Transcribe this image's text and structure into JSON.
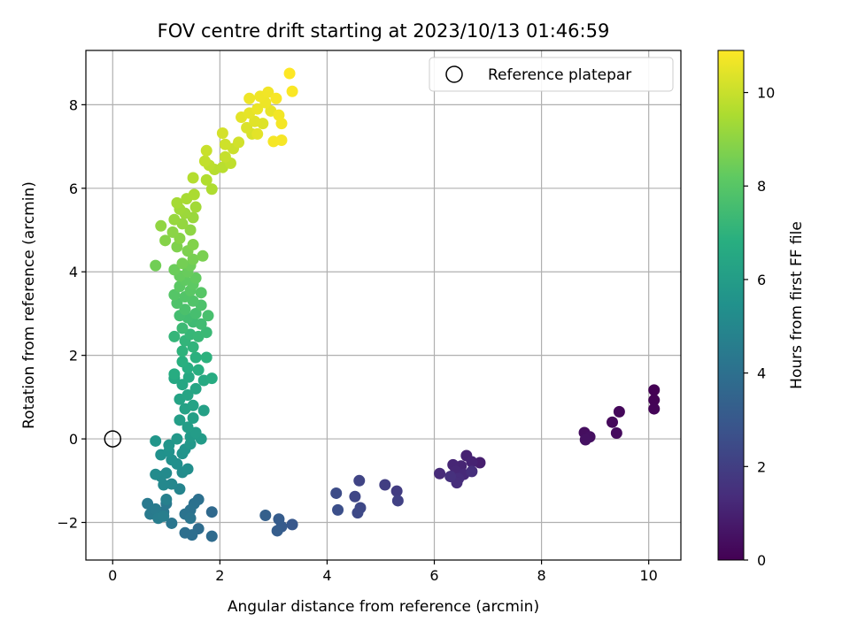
{
  "chart_data": {
    "type": "scatter",
    "title": "FOV centre drift starting at 2023/10/13 01:46:59",
    "xlabel": "Angular distance from reference (arcmin)",
    "ylabel": "Rotation from reference (arcmin)",
    "xlim": [
      -0.5,
      10.6
    ],
    "ylim": [
      -2.9,
      9.3
    ],
    "xticks": [
      0,
      2,
      4,
      6,
      8,
      10
    ],
    "yticks": [
      -2,
      0,
      2,
      4,
      6,
      8
    ],
    "xtick_labels": [
      "0",
      "2",
      "4",
      "6",
      "8",
      "10"
    ],
    "ytick_labels": [
      "−2",
      "0",
      "2",
      "4",
      "6",
      "8"
    ],
    "grid": true,
    "legend": {
      "placement": "top-right",
      "entries": [
        "Reference platepar"
      ]
    },
    "reference_point": {
      "x": 0,
      "y": 0,
      "marker": "open-circle"
    },
    "colorbar": {
      "label": "Hours from first FF file",
      "range": [
        0,
        10.9
      ],
      "ticks": [
        0,
        2,
        4,
        6,
        8,
        10
      ],
      "tick_labels": [
        "0",
        "2",
        "4",
        "6",
        "8",
        "10"
      ],
      "colormap": "viridis"
    },
    "points": [
      {
        "x": 10.1,
        "y": 1.17,
        "c": 0.0
      },
      {
        "x": 10.1,
        "y": 0.93,
        "c": 0.05
      },
      {
        "x": 10.1,
        "y": 0.72,
        "c": 0.1
      },
      {
        "x": 9.45,
        "y": 0.65,
        "c": 0.2
      },
      {
        "x": 9.32,
        "y": 0.4,
        "c": 0.25
      },
      {
        "x": 9.4,
        "y": 0.14,
        "c": 0.3
      },
      {
        "x": 8.8,
        "y": 0.15,
        "c": 0.4
      },
      {
        "x": 8.9,
        "y": 0.05,
        "c": 0.45
      },
      {
        "x": 8.82,
        "y": -0.02,
        "c": 0.5
      },
      {
        "x": 6.85,
        "y": -0.57,
        "c": 0.9
      },
      {
        "x": 6.6,
        "y": -0.4,
        "c": 1.0
      },
      {
        "x": 6.7,
        "y": -0.55,
        "c": 1.05
      },
      {
        "x": 6.5,
        "y": -0.65,
        "c": 1.1
      },
      {
        "x": 6.35,
        "y": -0.62,
        "c": 1.15
      },
      {
        "x": 6.4,
        "y": -0.78,
        "c": 1.2
      },
      {
        "x": 6.55,
        "y": -0.85,
        "c": 1.25
      },
      {
        "x": 6.1,
        "y": -0.83,
        "c": 1.3
      },
      {
        "x": 6.45,
        "y": -0.95,
        "c": 1.35
      },
      {
        "x": 6.42,
        "y": -1.05,
        "c": 1.4
      },
      {
        "x": 6.7,
        "y": -0.78,
        "c": 1.45
      },
      {
        "x": 6.3,
        "y": -0.9,
        "c": 1.5
      },
      {
        "x": 5.3,
        "y": -1.25,
        "c": 1.9
      },
      {
        "x": 5.08,
        "y": -1.1,
        "c": 2.0
      },
      {
        "x": 5.32,
        "y": -1.48,
        "c": 2.1
      },
      {
        "x": 4.6,
        "y": -1.0,
        "c": 2.2
      },
      {
        "x": 4.52,
        "y": -1.38,
        "c": 2.3
      },
      {
        "x": 4.62,
        "y": -1.65,
        "c": 2.35
      },
      {
        "x": 4.57,
        "y": -1.77,
        "c": 2.4
      },
      {
        "x": 4.17,
        "y": -1.3,
        "c": 2.5
      },
      {
        "x": 4.2,
        "y": -1.7,
        "c": 2.6
      },
      {
        "x": 3.35,
        "y": -2.05,
        "c": 3.0
      },
      {
        "x": 3.15,
        "y": -2.1,
        "c": 3.1
      },
      {
        "x": 3.1,
        "y": -1.92,
        "c": 3.15
      },
      {
        "x": 3.07,
        "y": -2.2,
        "c": 3.2
      },
      {
        "x": 2.85,
        "y": -1.83,
        "c": 3.3
      },
      {
        "x": 1.85,
        "y": -1.75,
        "c": 3.7
      },
      {
        "x": 1.85,
        "y": -2.33,
        "c": 3.8
      },
      {
        "x": 1.6,
        "y": -2.15,
        "c": 3.85
      },
      {
        "x": 1.48,
        "y": -2.3,
        "c": 3.9
      },
      {
        "x": 1.35,
        "y": -2.25,
        "c": 3.95
      },
      {
        "x": 1.6,
        "y": -1.45,
        "c": 4.0
      },
      {
        "x": 1.52,
        "y": -1.55,
        "c": 4.05
      },
      {
        "x": 1.45,
        "y": -1.7,
        "c": 4.1
      },
      {
        "x": 1.35,
        "y": -1.8,
        "c": 4.15
      },
      {
        "x": 1.45,
        "y": -1.9,
        "c": 4.2
      },
      {
        "x": 1.1,
        "y": -2.02,
        "c": 4.25
      },
      {
        "x": 0.95,
        "y": -1.75,
        "c": 4.3
      },
      {
        "x": 1.0,
        "y": -1.55,
        "c": 4.35
      },
      {
        "x": 0.65,
        "y": -1.55,
        "c": 4.4
      },
      {
        "x": 0.7,
        "y": -1.8,
        "c": 4.45
      },
      {
        "x": 0.8,
        "y": -1.68,
        "c": 4.5
      },
      {
        "x": 0.85,
        "y": -1.9,
        "c": 4.55
      },
      {
        "x": 0.95,
        "y": -1.85,
        "c": 4.6
      },
      {
        "x": 1.0,
        "y": -1.45,
        "c": 4.7
      },
      {
        "x": 1.25,
        "y": -1.2,
        "c": 4.9
      },
      {
        "x": 1.1,
        "y": -1.08,
        "c": 5.0
      },
      {
        "x": 0.95,
        "y": -1.1,
        "c": 5.05
      },
      {
        "x": 0.9,
        "y": -0.9,
        "c": 5.1
      },
      {
        "x": 1.0,
        "y": -0.82,
        "c": 5.15
      },
      {
        "x": 0.8,
        "y": -0.85,
        "c": 5.2
      },
      {
        "x": 1.3,
        "y": -0.8,
        "c": 5.25
      },
      {
        "x": 1.4,
        "y": -0.72,
        "c": 5.3
      },
      {
        "x": 1.2,
        "y": -0.6,
        "c": 5.35
      },
      {
        "x": 1.1,
        "y": -0.5,
        "c": 5.4
      },
      {
        "x": 0.9,
        "y": -0.38,
        "c": 5.45
      },
      {
        "x": 1.05,
        "y": -0.3,
        "c": 5.5
      },
      {
        "x": 1.3,
        "y": -0.35,
        "c": 5.55
      },
      {
        "x": 1.35,
        "y": -0.25,
        "c": 5.6
      },
      {
        "x": 1.05,
        "y": -0.15,
        "c": 5.65
      },
      {
        "x": 0.8,
        "y": -0.05,
        "c": 5.7
      },
      {
        "x": 1.45,
        "y": -0.12,
        "c": 5.75
      },
      {
        "x": 1.2,
        "y": 0.0,
        "c": 5.8
      },
      {
        "x": 1.45,
        "y": 0.05,
        "c": 5.85
      },
      {
        "x": 1.65,
        "y": 0.0,
        "c": 5.9
      },
      {
        "x": 1.55,
        "y": 0.15,
        "c": 5.95
      },
      {
        "x": 1.4,
        "y": 0.28,
        "c": 6.0
      },
      {
        "x": 1.25,
        "y": 0.45,
        "c": 6.05
      },
      {
        "x": 1.5,
        "y": 0.5,
        "c": 6.1
      },
      {
        "x": 1.7,
        "y": 0.68,
        "c": 6.15
      },
      {
        "x": 1.35,
        "y": 0.72,
        "c": 6.2
      },
      {
        "x": 1.5,
        "y": 0.8,
        "c": 6.25
      },
      {
        "x": 1.25,
        "y": 0.95,
        "c": 6.3
      },
      {
        "x": 1.4,
        "y": 1.05,
        "c": 6.35
      },
      {
        "x": 1.55,
        "y": 1.2,
        "c": 6.4
      },
      {
        "x": 1.3,
        "y": 1.3,
        "c": 6.45
      },
      {
        "x": 1.15,
        "y": 1.45,
        "c": 6.5
      },
      {
        "x": 1.42,
        "y": 1.48,
        "c": 6.55
      },
      {
        "x": 1.7,
        "y": 1.4,
        "c": 6.6
      },
      {
        "x": 1.85,
        "y": 1.45,
        "c": 6.65
      },
      {
        "x": 1.15,
        "y": 1.55,
        "c": 6.7
      },
      {
        "x": 1.4,
        "y": 1.7,
        "c": 6.75
      },
      {
        "x": 1.6,
        "y": 1.65,
        "c": 6.8
      },
      {
        "x": 1.3,
        "y": 1.85,
        "c": 6.85
      },
      {
        "x": 1.55,
        "y": 1.95,
        "c": 6.9
      },
      {
        "x": 1.75,
        "y": 1.95,
        "c": 6.95
      },
      {
        "x": 1.3,
        "y": 2.1,
        "c": 7.0
      },
      {
        "x": 1.5,
        "y": 2.2,
        "c": 7.05
      },
      {
        "x": 1.35,
        "y": 2.35,
        "c": 7.1
      },
      {
        "x": 1.15,
        "y": 2.45,
        "c": 7.15
      },
      {
        "x": 1.45,
        "y": 2.5,
        "c": 7.2
      },
      {
        "x": 1.6,
        "y": 2.45,
        "c": 7.25
      },
      {
        "x": 1.75,
        "y": 2.55,
        "c": 7.3
      },
      {
        "x": 1.3,
        "y": 2.65,
        "c": 7.35
      },
      {
        "x": 1.5,
        "y": 2.8,
        "c": 7.4
      },
      {
        "x": 1.65,
        "y": 2.75,
        "c": 7.45
      },
      {
        "x": 1.4,
        "y": 2.9,
        "c": 7.5
      },
      {
        "x": 1.25,
        "y": 2.95,
        "c": 7.55
      },
      {
        "x": 1.55,
        "y": 3.0,
        "c": 7.6
      },
      {
        "x": 1.78,
        "y": 2.95,
        "c": 7.65
      },
      {
        "x": 1.35,
        "y": 3.1,
        "c": 7.7
      },
      {
        "x": 1.65,
        "y": 3.2,
        "c": 7.75
      },
      {
        "x": 1.2,
        "y": 3.25,
        "c": 7.8
      },
      {
        "x": 1.5,
        "y": 3.3,
        "c": 7.85
      },
      {
        "x": 1.35,
        "y": 3.4,
        "c": 7.9
      },
      {
        "x": 1.15,
        "y": 3.45,
        "c": 7.95
      },
      {
        "x": 1.65,
        "y": 3.5,
        "c": 8.0
      },
      {
        "x": 1.45,
        "y": 3.55,
        "c": 8.05
      },
      {
        "x": 1.25,
        "y": 3.65,
        "c": 8.1
      },
      {
        "x": 1.5,
        "y": 3.7,
        "c": 8.15
      },
      {
        "x": 1.35,
        "y": 3.8,
        "c": 8.2
      },
      {
        "x": 1.55,
        "y": 3.85,
        "c": 8.25
      },
      {
        "x": 1.25,
        "y": 3.9,
        "c": 8.3
      },
      {
        "x": 1.4,
        "y": 4.0,
        "c": 8.35
      },
      {
        "x": 1.15,
        "y": 4.05,
        "c": 8.4
      },
      {
        "x": 1.45,
        "y": 4.15,
        "c": 8.45
      },
      {
        "x": 0.8,
        "y": 4.15,
        "c": 8.5
      },
      {
        "x": 1.3,
        "y": 4.2,
        "c": 8.55
      },
      {
        "x": 1.5,
        "y": 4.3,
        "c": 8.6
      },
      {
        "x": 1.68,
        "y": 4.38,
        "c": 8.65
      },
      {
        "x": 1.4,
        "y": 4.5,
        "c": 8.7
      },
      {
        "x": 1.2,
        "y": 4.6,
        "c": 8.75
      },
      {
        "x": 1.5,
        "y": 4.65,
        "c": 8.8
      },
      {
        "x": 0.98,
        "y": 4.75,
        "c": 8.85
      },
      {
        "x": 1.25,
        "y": 4.8,
        "c": 8.9
      },
      {
        "x": 1.12,
        "y": 4.95,
        "c": 8.95
      },
      {
        "x": 1.45,
        "y": 5.0,
        "c": 9.0
      },
      {
        "x": 0.9,
        "y": 5.1,
        "c": 9.05
      },
      {
        "x": 1.3,
        "y": 5.15,
        "c": 9.1
      },
      {
        "x": 1.15,
        "y": 5.25,
        "c": 9.15
      },
      {
        "x": 1.5,
        "y": 5.3,
        "c": 9.2
      },
      {
        "x": 1.35,
        "y": 5.4,
        "c": 9.25
      },
      {
        "x": 1.25,
        "y": 5.5,
        "c": 9.3
      },
      {
        "x": 1.55,
        "y": 5.55,
        "c": 9.35
      },
      {
        "x": 1.2,
        "y": 5.65,
        "c": 9.4
      },
      {
        "x": 1.38,
        "y": 5.75,
        "c": 9.45
      },
      {
        "x": 1.52,
        "y": 5.85,
        "c": 9.5
      },
      {
        "x": 1.85,
        "y": 5.98,
        "c": 9.55
      },
      {
        "x": 1.75,
        "y": 6.2,
        "c": 9.6
      },
      {
        "x": 1.5,
        "y": 6.25,
        "c": 9.65
      },
      {
        "x": 1.9,
        "y": 6.45,
        "c": 9.7
      },
      {
        "x": 2.05,
        "y": 6.5,
        "c": 9.75
      },
      {
        "x": 1.8,
        "y": 6.55,
        "c": 9.8
      },
      {
        "x": 2.2,
        "y": 6.6,
        "c": 9.85
      },
      {
        "x": 1.72,
        "y": 6.65,
        "c": 9.9
      },
      {
        "x": 2.1,
        "y": 6.75,
        "c": 9.95
      },
      {
        "x": 1.75,
        "y": 6.9,
        "c": 10.0
      },
      {
        "x": 2.25,
        "y": 6.95,
        "c": 10.05
      },
      {
        "x": 2.1,
        "y": 7.05,
        "c": 10.1
      },
      {
        "x": 2.35,
        "y": 7.1,
        "c": 10.15
      },
      {
        "x": 2.05,
        "y": 7.32,
        "c": 10.2
      },
      {
        "x": 2.6,
        "y": 7.3,
        "c": 10.25
      },
      {
        "x": 2.5,
        "y": 7.45,
        "c": 10.3
      },
      {
        "x": 2.8,
        "y": 7.55,
        "c": 10.35
      },
      {
        "x": 2.65,
        "y": 7.6,
        "c": 10.4
      },
      {
        "x": 2.4,
        "y": 7.7,
        "c": 10.45
      },
      {
        "x": 2.55,
        "y": 7.8,
        "c": 10.5
      },
      {
        "x": 2.95,
        "y": 7.85,
        "c": 10.55
      },
      {
        "x": 2.7,
        "y": 7.9,
        "c": 10.6
      },
      {
        "x": 2.85,
        "y": 8.05,
        "c": 10.62
      },
      {
        "x": 2.55,
        "y": 8.15,
        "c": 10.65
      },
      {
        "x": 2.75,
        "y": 8.2,
        "c": 10.67
      },
      {
        "x": 2.9,
        "y": 8.3,
        "c": 10.7
      },
      {
        "x": 3.1,
        "y": 7.75,
        "c": 10.72
      },
      {
        "x": 3.15,
        "y": 7.55,
        "c": 10.74
      },
      {
        "x": 3.0,
        "y": 7.12,
        "c": 10.76
      },
      {
        "x": 3.15,
        "y": 7.15,
        "c": 10.78
      },
      {
        "x": 3.05,
        "y": 8.15,
        "c": 10.8
      },
      {
        "x": 3.35,
        "y": 8.32,
        "c": 10.85
      },
      {
        "x": 3.3,
        "y": 8.75,
        "c": 10.9
      },
      {
        "x": 2.7,
        "y": 7.3,
        "c": 10.45
      }
    ]
  }
}
